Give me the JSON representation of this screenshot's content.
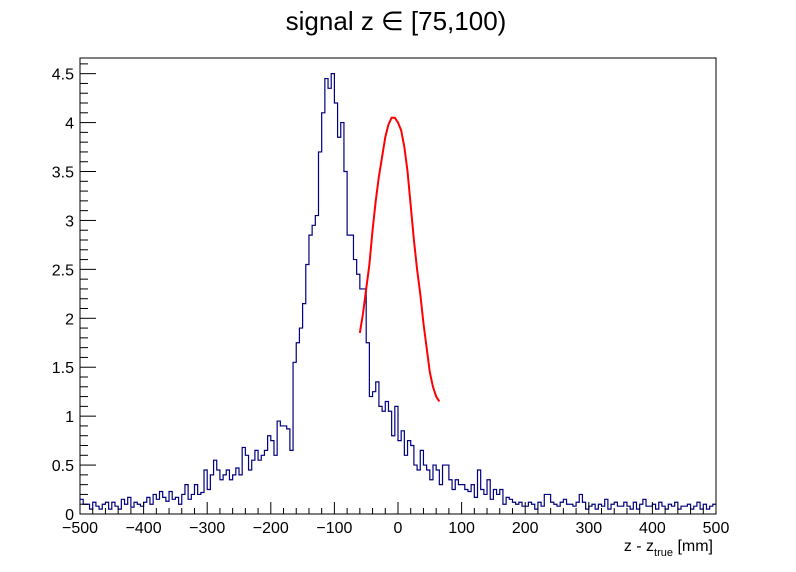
{
  "chart_data": {
    "type": "histogram",
    "title": "signal z ∈ [75,100)",
    "xlabel": {
      "main": "z - z",
      "sub": "true",
      "unit": " [mm]"
    },
    "ylabel": "",
    "xlim": [
      -500,
      500
    ],
    "ylim": [
      0,
      4.66
    ],
    "grid": false,
    "legend": "none",
    "x_ticks": [
      -500,
      -400,
      -300,
      -200,
      -100,
      0,
      100,
      200,
      300,
      400,
      500
    ],
    "x_tick_labels": [
      "−500",
      "−400",
      "−300",
      "−200",
      "−100",
      "0",
      "100",
      "200",
      "300",
      "400",
      "500"
    ],
    "y_ticks": [
      0,
      0.5,
      1,
      1.5,
      2,
      2.5,
      3,
      3.5,
      4,
      4.5
    ],
    "y_tick_labels": [
      "0",
      "0.5",
      "1",
      "1.5",
      "2",
      "2.5",
      "3",
      "3.5",
      "4",
      "4.5"
    ],
    "bin_width": 5,
    "bin_start": -500,
    "colors": {
      "histogram": "#000080",
      "fit": "#ff0000",
      "frame": "#000000"
    },
    "series": [
      {
        "type": "step",
        "bin_width": 5,
        "x_start": -500,
        "values": [
          0.15,
          0.1,
          0.1,
          0.05,
          0.12,
          0.08,
          0.05,
          0.1,
          0.12,
          0.05,
          0.12,
          0.08,
          0.05,
          0.15,
          0.1,
          0.17,
          0.07,
          0.12,
          0.1,
          0.08,
          0.12,
          0.17,
          0.1,
          0.2,
          0.15,
          0.23,
          0.17,
          0.13,
          0.23,
          0.15,
          0.17,
          0.1,
          0.2,
          0.3,
          0.15,
          0.2,
          0.3,
          0.2,
          0.22,
          0.45,
          0.25,
          0.4,
          0.55,
          0.45,
          0.35,
          0.4,
          0.45,
          0.35,
          0.4,
          0.47,
          0.4,
          0.68,
          0.6,
          0.45,
          0.55,
          0.65,
          0.55,
          0.6,
          0.65,
          0.8,
          0.75,
          0.6,
          0.95,
          0.9,
          0.9,
          0.87,
          0.65,
          1.55,
          1.75,
          1.9,
          2.15,
          2.55,
          2.85,
          2.95,
          3.05,
          3.7,
          4.1,
          4.45,
          4.35,
          4.5,
          4.2,
          3.85,
          4.0,
          3.5,
          2.85,
          2.85,
          2.6,
          2.45,
          2.3,
          2.3,
          1.75,
          1.2,
          1.25,
          1.35,
          1.1,
          1.05,
          1.15,
          1.05,
          0.8,
          1.1,
          0.75,
          0.85,
          0.6,
          0.75,
          0.7,
          0.5,
          0.45,
          0.65,
          0.5,
          0.45,
          0.35,
          0.5,
          0.45,
          0.3,
          0.5,
          0.5,
          0.35,
          0.25,
          0.35,
          0.3,
          0.3,
          0.25,
          0.23,
          0.3,
          0.17,
          0.45,
          0.25,
          0.2,
          0.35,
          0.15,
          0.25,
          0.2,
          0.25,
          0.1,
          0.17,
          0.15,
          0.12,
          0.1,
          0.12,
          0.08,
          0.08,
          0.12,
          0.1,
          0.05,
          0.12,
          0.08,
          0.2,
          0.2,
          0.12,
          0.1,
          0.08,
          0.12,
          0.15,
          0.1,
          0.1,
          0.08,
          0.12,
          0.2,
          0.12,
          0.05,
          0.08,
          0.1,
          0.05,
          0.1,
          0.08,
          0.15,
          0.05,
          0.1,
          0.12,
          0.08,
          0.08,
          0.12,
          0.08,
          0.05,
          0.12,
          0.05,
          0.1,
          0.15,
          0.08,
          0.08,
          0.1,
          0.05,
          0.12,
          0.08,
          0.05,
          0.1,
          0.08,
          0.12,
          0.05,
          0.08,
          0.08,
          0.1,
          0.05,
          0.08,
          0.12,
          0.05,
          0.1,
          0.05,
          0.08,
          0.1
        ]
      },
      {
        "type": "fit_curve",
        "x": [
          -60,
          -55,
          -50,
          -45,
          -40,
          -35,
          -30,
          -25,
          -20,
          -15,
          -10,
          -5,
          0,
          5,
          10,
          15,
          20,
          25,
          30,
          35,
          40,
          45,
          50,
          55,
          60,
          65
        ],
        "values": [
          1.85,
          2.05,
          2.3,
          2.55,
          2.9,
          3.2,
          3.45,
          3.65,
          3.85,
          3.98,
          4.05,
          4.05,
          4.0,
          3.92,
          3.75,
          3.5,
          3.15,
          2.8,
          2.5,
          2.25,
          1.95,
          1.7,
          1.45,
          1.3,
          1.2,
          1.15
        ]
      }
    ]
  }
}
